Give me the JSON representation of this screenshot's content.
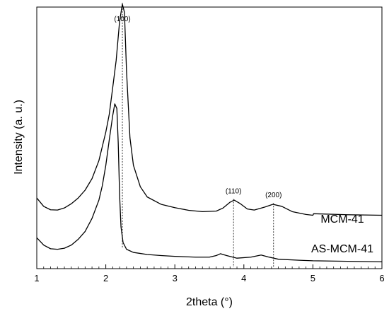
{
  "chart_data": {
    "type": "line",
    "xlabel": "2theta (°)",
    "ylabel": "Intensity (a. u.)",
    "xlim": [
      1,
      6
    ],
    "x_ticks": [
      "1",
      "2",
      "3",
      "4",
      "5",
      "6"
    ],
    "y_ticks_shown": false,
    "grid": false,
    "legend": "none",
    "intensity_scale": "arbitrary units (0 = axis baseline, 100 = top of plot)",
    "series": [
      {
        "name": "MCM-41",
        "color": "#000000",
        "points": [
          [
            1.0,
            27.0
          ],
          [
            1.1,
            23.8
          ],
          [
            1.2,
            22.5
          ],
          [
            1.3,
            22.4
          ],
          [
            1.4,
            23.2
          ],
          [
            1.5,
            24.8
          ],
          [
            1.6,
            27.0
          ],
          [
            1.7,
            30.0
          ],
          [
            1.8,
            34.4
          ],
          [
            1.9,
            41.3
          ],
          [
            2.0,
            52.2
          ],
          [
            2.05,
            59.0
          ],
          [
            2.1,
            69.2
          ],
          [
            2.15,
            79.6
          ],
          [
            2.2,
            94.6
          ],
          [
            2.24,
            101.1
          ],
          [
            2.27,
            98.0
          ],
          [
            2.3,
            75.6
          ],
          [
            2.35,
            50.0
          ],
          [
            2.4,
            39.5
          ],
          [
            2.5,
            31.3
          ],
          [
            2.6,
            27.4
          ],
          [
            2.8,
            24.6
          ],
          [
            3.0,
            23.3
          ],
          [
            3.2,
            22.3
          ],
          [
            3.4,
            21.8
          ],
          [
            3.6,
            22.0
          ],
          [
            3.7,
            23.2
          ],
          [
            3.8,
            25.4
          ],
          [
            3.86,
            26.2
          ],
          [
            3.95,
            24.8
          ],
          [
            4.05,
            22.8
          ],
          [
            4.15,
            22.4
          ],
          [
            4.3,
            23.5
          ],
          [
            4.42,
            24.6
          ],
          [
            4.55,
            23.8
          ],
          [
            4.7,
            21.8
          ],
          [
            4.9,
            20.7
          ],
          [
            5.0,
            20.4
          ],
          [
            5.01,
            21.0
          ],
          [
            5.5,
            20.6
          ],
          [
            6.0,
            20.4
          ]
        ]
      },
      {
        "name": "AS-MCM-41",
        "color": "#000000",
        "points": [
          [
            1.0,
            11.8
          ],
          [
            1.1,
            9.0
          ],
          [
            1.2,
            7.6
          ],
          [
            1.3,
            7.4
          ],
          [
            1.4,
            7.8
          ],
          [
            1.5,
            9.0
          ],
          [
            1.6,
            11.2
          ],
          [
            1.7,
            14.2
          ],
          [
            1.8,
            19.2
          ],
          [
            1.9,
            26.2
          ],
          [
            1.95,
            31.8
          ],
          [
            2.0,
            39.5
          ],
          [
            2.05,
            49.2
          ],
          [
            2.1,
            58.5
          ],
          [
            2.13,
            63.0
          ],
          [
            2.16,
            61.2
          ],
          [
            2.18,
            48.0
          ],
          [
            2.2,
            28.0
          ],
          [
            2.22,
            16.0
          ],
          [
            2.25,
            10.0
          ],
          [
            2.3,
            7.4
          ],
          [
            2.4,
            6.2
          ],
          [
            2.6,
            5.4
          ],
          [
            2.8,
            5.0
          ],
          [
            3.0,
            4.7
          ],
          [
            3.3,
            4.4
          ],
          [
            3.5,
            4.4
          ],
          [
            3.6,
            5.0
          ],
          [
            3.66,
            5.7
          ],
          [
            3.75,
            5.0
          ],
          [
            3.9,
            4.0
          ],
          [
            4.1,
            4.4
          ],
          [
            4.25,
            5.2
          ],
          [
            4.35,
            4.5
          ],
          [
            4.5,
            3.6
          ],
          [
            4.8,
            3.2
          ],
          [
            5.0,
            3.0
          ],
          [
            5.5,
            2.8
          ],
          [
            6.0,
            2.6
          ]
        ]
      }
    ],
    "peak_markers": [
      {
        "label": "(100)",
        "x": 2.24
      },
      {
        "label": "(110)",
        "x": 3.85
      },
      {
        "label": "(200)",
        "x": 4.43
      }
    ],
    "series_labels": [
      "MCM-41",
      "AS-MCM-41"
    ]
  }
}
